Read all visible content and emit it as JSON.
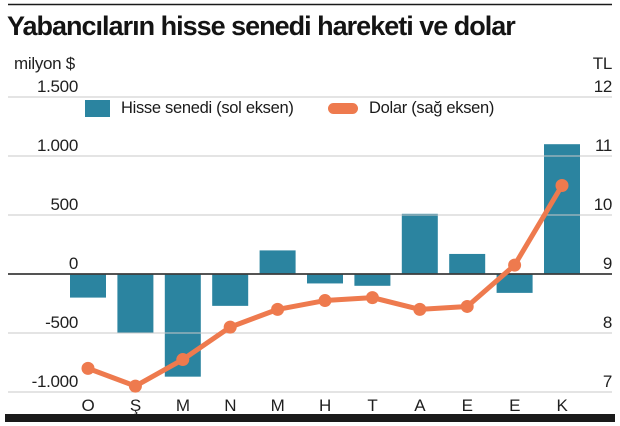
{
  "header": {
    "title": "Yabancıların hisse senedi hareketi ve dolar",
    "left_unit": "milyon $",
    "right_unit": "TL"
  },
  "legend": {
    "bar_label": "Hisse senedi (sol eksen)",
    "line_label": "Dolar (sağ eksen)"
  },
  "colors": {
    "bar": "#2b84a0",
    "line": "#ee7a4e",
    "grid": "#c8c8c8",
    "zero_line": "#3c3c3c",
    "text": "#1f1f1f",
    "frame": "#1a1a1a"
  },
  "chart_data": {
    "type": "bar",
    "title": "Yabancıların hisse senedi hareketi ve dolar",
    "categories": [
      "O",
      "Ş",
      "M",
      "N",
      "M",
      "H",
      "T",
      "A",
      "E",
      "E",
      "K"
    ],
    "series": [
      {
        "name": "Hisse senedi (sol eksen)",
        "type": "bar",
        "axis": "left",
        "color": "#2b84a0",
        "values": [
          -200,
          -500,
          -870,
          -270,
          200,
          -80,
          -100,
          510,
          170,
          -160,
          1100
        ]
      },
      {
        "name": "Dolar (sağ eksen)",
        "type": "line",
        "axis": "right",
        "color": "#ee7a4e",
        "values": [
          7.4,
          7.1,
          7.55,
          8.1,
          8.4,
          8.55,
          8.6,
          8.4,
          8.45,
          9.15,
          10.5
        ]
      }
    ],
    "left_axis": {
      "unit": "milyon $",
      "tick_labels": [
        "1.500",
        "1.000",
        "500",
        "0",
        "-500",
        "-1.000"
      ],
      "tick_values": [
        1500,
        1000,
        500,
        0,
        -500,
        -1000
      ],
      "range": [
        -1000,
        1500
      ]
    },
    "right_axis": {
      "unit": "TL",
      "tick_labels": [
        "12",
        "11",
        "10",
        "9",
        "8",
        "7"
      ],
      "tick_values": [
        12,
        11,
        10,
        9,
        8,
        7
      ],
      "range": [
        7,
        12
      ]
    },
    "grid": true,
    "legend_position": "top"
  }
}
